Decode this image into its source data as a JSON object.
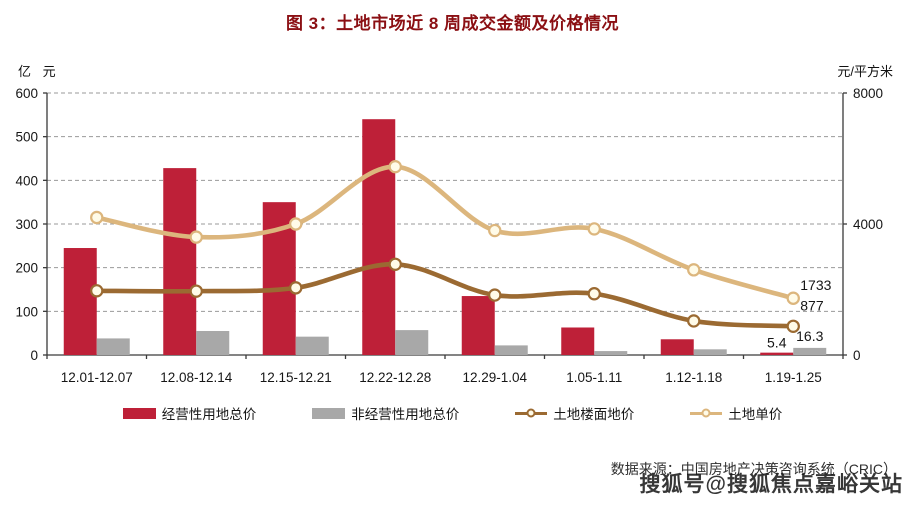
{
  "title": "图 3：土地市场近 8 周成交金额及价格情况",
  "footer": {
    "source": "数据来源：中国房地产决策咨询系统（CRIC）",
    "watermark": "搜狐号@搜狐焦点嘉峪关站"
  },
  "colors": {
    "title": "#8B0F13",
    "bar_red": "#BE2038",
    "bar_gray": "#A8A8A8",
    "line_dark": "#9B6A32",
    "line_light": "#DCB67D",
    "marker_fill": "#FFFBE8"
  },
  "chart_data": {
    "type": "bar",
    "subtype": "combo bar+line, dual y-axis",
    "categories": [
      "12.01-12.07",
      "12.08-12.14",
      "12.15-12.21",
      "12.22-12.28",
      "12.29-1.04",
      "1.05-1.11",
      "1.12-1.18",
      "1.19-1.25"
    ],
    "left_axis": {
      "unit": "亿 元",
      "min": 0,
      "max": 600,
      "ticks": [
        0,
        100,
        200,
        300,
        400,
        500,
        600
      ]
    },
    "right_axis": {
      "unit": "元/平方米",
      "min": 0,
      "max": 8000,
      "ticks": [
        0,
        4000,
        8000
      ]
    },
    "grid": "dashed horizontal gridlines every 100 (left scale)",
    "legend_position": "bottom",
    "series": [
      {
        "name": "经营性用地总价",
        "type": "bar",
        "axis": "left",
        "color": "#BE2038",
        "values": [
          245,
          428,
          350,
          540,
          135,
          63,
          36,
          5.4
        ]
      },
      {
        "name": "非经营性用地总价",
        "type": "bar",
        "axis": "left",
        "color": "#A8A8A8",
        "values": [
          38,
          55,
          42,
          57,
          22,
          9,
          13,
          16.3
        ]
      },
      {
        "name": "土地楼面地价",
        "type": "line",
        "axis": "right",
        "color": "#9B6A32",
        "values": [
          1960,
          1950,
          2050,
          2770,
          1830,
          1870,
          1040,
          877
        ]
      },
      {
        "name": "土地单价",
        "type": "line",
        "axis": "right",
        "color": "#DCB67D",
        "values": [
          4200,
          3600,
          4000,
          5750,
          3800,
          3850,
          2600,
          1733
        ]
      }
    ],
    "shown_last_value_labels": [
      "5.4",
      "16.3",
      "877",
      "1733"
    ]
  }
}
